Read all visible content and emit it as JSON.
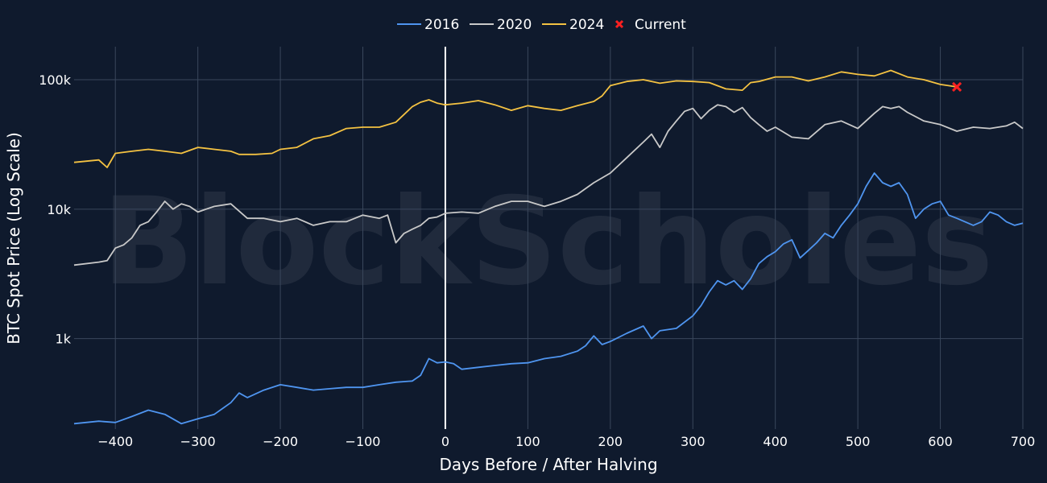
{
  "chart_data": {
    "type": "line",
    "watermark": "BlockScholes",
    "xlabel": "Days Before / After Halving",
    "ylabel": "BTC Spot Price (Log Scale)",
    "x_range": [
      -450,
      700
    ],
    "y_range": [
      200,
      180000
    ],
    "y_scale": "log",
    "grid": true,
    "legend_position": "top-center",
    "halving_marker_x": 0,
    "x_ticks": [
      -400,
      -300,
      -200,
      -100,
      0,
      100,
      200,
      300,
      400,
      500,
      600,
      700
    ],
    "x_tick_labels": [
      "−400",
      "−300",
      "−200",
      "−100",
      "0",
      "100",
      "200",
      "300",
      "400",
      "500",
      "600",
      "700"
    ],
    "y_ticks": [
      1000,
      10000,
      100000
    ],
    "y_tick_labels": [
      "1k",
      "10k",
      "100k"
    ],
    "series": [
      {
        "name": "2016",
        "color": "#4f95f0",
        "points": [
          [
            -450,
            220
          ],
          [
            -420,
            230
          ],
          [
            -400,
            225
          ],
          [
            -380,
            250
          ],
          [
            -360,
            280
          ],
          [
            -340,
            260
          ],
          [
            -320,
            220
          ],
          [
            -300,
            240
          ],
          [
            -280,
            260
          ],
          [
            -260,
            320
          ],
          [
            -250,
            380
          ],
          [
            -240,
            350
          ],
          [
            -220,
            400
          ],
          [
            -200,
            440
          ],
          [
            -180,
            420
          ],
          [
            -160,
            400
          ],
          [
            -140,
            410
          ],
          [
            -120,
            420
          ],
          [
            -100,
            420
          ],
          [
            -80,
            440
          ],
          [
            -60,
            460
          ],
          [
            -40,
            470
          ],
          [
            -30,
            520
          ],
          [
            -20,
            700
          ],
          [
            -10,
            650
          ],
          [
            0,
            660
          ],
          [
            10,
            640
          ],
          [
            20,
            580
          ],
          [
            40,
            600
          ],
          [
            60,
            620
          ],
          [
            80,
            640
          ],
          [
            100,
            650
          ],
          [
            120,
            700
          ],
          [
            140,
            730
          ],
          [
            160,
            800
          ],
          [
            170,
            880
          ],
          [
            180,
            1050
          ],
          [
            190,
            900
          ],
          [
            200,
            950
          ],
          [
            220,
            1100
          ],
          [
            240,
            1250
          ],
          [
            250,
            1000
          ],
          [
            260,
            1150
          ],
          [
            280,
            1200
          ],
          [
            300,
            1500
          ],
          [
            310,
            1800
          ],
          [
            320,
            2300
          ],
          [
            330,
            2800
          ],
          [
            340,
            2600
          ],
          [
            350,
            2800
          ],
          [
            360,
            2400
          ],
          [
            370,
            2900
          ],
          [
            380,
            3800
          ],
          [
            390,
            4300
          ],
          [
            400,
            4700
          ],
          [
            410,
            5400
          ],
          [
            420,
            5800
          ],
          [
            430,
            4200
          ],
          [
            440,
            4800
          ],
          [
            450,
            5500
          ],
          [
            460,
            6500
          ],
          [
            470,
            6000
          ],
          [
            480,
            7500
          ],
          [
            490,
            9000
          ],
          [
            500,
            11000
          ],
          [
            510,
            15000
          ],
          [
            520,
            19000
          ],
          [
            530,
            16000
          ],
          [
            540,
            15000
          ],
          [
            550,
            16000
          ],
          [
            560,
            13000
          ],
          [
            570,
            8500
          ],
          [
            580,
            10000
          ],
          [
            590,
            11000
          ],
          [
            600,
            11500
          ],
          [
            610,
            9000
          ],
          [
            620,
            8500
          ],
          [
            640,
            7500
          ],
          [
            650,
            8000
          ],
          [
            660,
            9500
          ],
          [
            670,
            9000
          ],
          [
            680,
            8000
          ],
          [
            690,
            7500
          ],
          [
            700,
            7800
          ]
        ]
      },
      {
        "name": "2020",
        "color": "#c9c9c9",
        "points": [
          [
            -450,
            3700
          ],
          [
            -420,
            3900
          ],
          [
            -410,
            4000
          ],
          [
            -400,
            5000
          ],
          [
            -390,
            5300
          ],
          [
            -380,
            6000
          ],
          [
            -370,
            7500
          ],
          [
            -360,
            8000
          ],
          [
            -350,
            9500
          ],
          [
            -340,
            11500
          ],
          [
            -330,
            10000
          ],
          [
            -320,
            11000
          ],
          [
            -310,
            10500
          ],
          [
            -300,
            9500
          ],
          [
            -290,
            10000
          ],
          [
            -280,
            10500
          ],
          [
            -260,
            11000
          ],
          [
            -240,
            8500
          ],
          [
            -220,
            8500
          ],
          [
            -200,
            8000
          ],
          [
            -180,
            8500
          ],
          [
            -160,
            7500
          ],
          [
            -140,
            8000
          ],
          [
            -120,
            8000
          ],
          [
            -100,
            9000
          ],
          [
            -80,
            8500
          ],
          [
            -70,
            9000
          ],
          [
            -60,
            5500
          ],
          [
            -50,
            6500
          ],
          [
            -40,
            7000
          ],
          [
            -30,
            7500
          ],
          [
            -20,
            8500
          ],
          [
            -10,
            8700
          ],
          [
            0,
            9300
          ],
          [
            20,
            9500
          ],
          [
            40,
            9300
          ],
          [
            60,
            10500
          ],
          [
            80,
            11500
          ],
          [
            100,
            11500
          ],
          [
            120,
            10500
          ],
          [
            140,
            11500
          ],
          [
            160,
            13000
          ],
          [
            180,
            16000
          ],
          [
            200,
            19000
          ],
          [
            220,
            25000
          ],
          [
            240,
            33000
          ],
          [
            250,
            38000
          ],
          [
            260,
            30000
          ],
          [
            270,
            40000
          ],
          [
            280,
            48000
          ],
          [
            290,
            57000
          ],
          [
            300,
            60000
          ],
          [
            310,
            50000
          ],
          [
            320,
            58000
          ],
          [
            330,
            64000
          ],
          [
            340,
            62000
          ],
          [
            350,
            56000
          ],
          [
            360,
            61000
          ],
          [
            370,
            51000
          ],
          [
            380,
            45000
          ],
          [
            390,
            40000
          ],
          [
            400,
            43000
          ],
          [
            420,
            36000
          ],
          [
            440,
            35000
          ],
          [
            460,
            45000
          ],
          [
            480,
            48000
          ],
          [
            500,
            42000
          ],
          [
            520,
            55000
          ],
          [
            530,
            62000
          ],
          [
            540,
            60000
          ],
          [
            550,
            62000
          ],
          [
            560,
            56000
          ],
          [
            580,
            48000
          ],
          [
            600,
            45000
          ],
          [
            620,
            40000
          ],
          [
            640,
            43000
          ],
          [
            660,
            42000
          ],
          [
            680,
            44000
          ],
          [
            690,
            47000
          ],
          [
            700,
            42000
          ]
        ]
      },
      {
        "name": "2024",
        "color": "#f4c242",
        "points": [
          [
            -450,
            23000
          ],
          [
            -420,
            24000
          ],
          [
            -410,
            21000
          ],
          [
            -400,
            27000
          ],
          [
            -380,
            28000
          ],
          [
            -360,
            29000
          ],
          [
            -340,
            28000
          ],
          [
            -320,
            27000
          ],
          [
            -300,
            30000
          ],
          [
            -280,
            29000
          ],
          [
            -260,
            28000
          ],
          [
            -250,
            26500
          ],
          [
            -230,
            26500
          ],
          [
            -210,
            27000
          ],
          [
            -200,
            29000
          ],
          [
            -180,
            30000
          ],
          [
            -160,
            35000
          ],
          [
            -140,
            37000
          ],
          [
            -120,
            42000
          ],
          [
            -100,
            43000
          ],
          [
            -80,
            43000
          ],
          [
            -60,
            47000
          ],
          [
            -40,
            62000
          ],
          [
            -30,
            67000
          ],
          [
            -20,
            70000
          ],
          [
            -10,
            66000
          ],
          [
            0,
            64000
          ],
          [
            20,
            66000
          ],
          [
            40,
            69000
          ],
          [
            60,
            64000
          ],
          [
            80,
            58000
          ],
          [
            100,
            63000
          ],
          [
            120,
            60000
          ],
          [
            140,
            58000
          ],
          [
            160,
            63000
          ],
          [
            180,
            68000
          ],
          [
            190,
            75000
          ],
          [
            200,
            90000
          ],
          [
            220,
            97000
          ],
          [
            240,
            100000
          ],
          [
            260,
            94000
          ],
          [
            280,
            98000
          ],
          [
            300,
            97000
          ],
          [
            320,
            95000
          ],
          [
            340,
            85000
          ],
          [
            360,
            83000
          ],
          [
            370,
            95000
          ],
          [
            380,
            97000
          ],
          [
            400,
            105000
          ],
          [
            420,
            105000
          ],
          [
            440,
            98000
          ],
          [
            460,
            105000
          ],
          [
            480,
            115000
          ],
          [
            500,
            110000
          ],
          [
            520,
            107000
          ],
          [
            540,
            118000
          ],
          [
            560,
            105000
          ],
          [
            580,
            100000
          ],
          [
            600,
            92000
          ],
          [
            610,
            90000
          ],
          [
            620,
            88000
          ]
        ]
      }
    ],
    "current_point": {
      "name": "Current",
      "x": 620,
      "y": 88000,
      "color": "#ff2020",
      "marker": "x"
    }
  }
}
